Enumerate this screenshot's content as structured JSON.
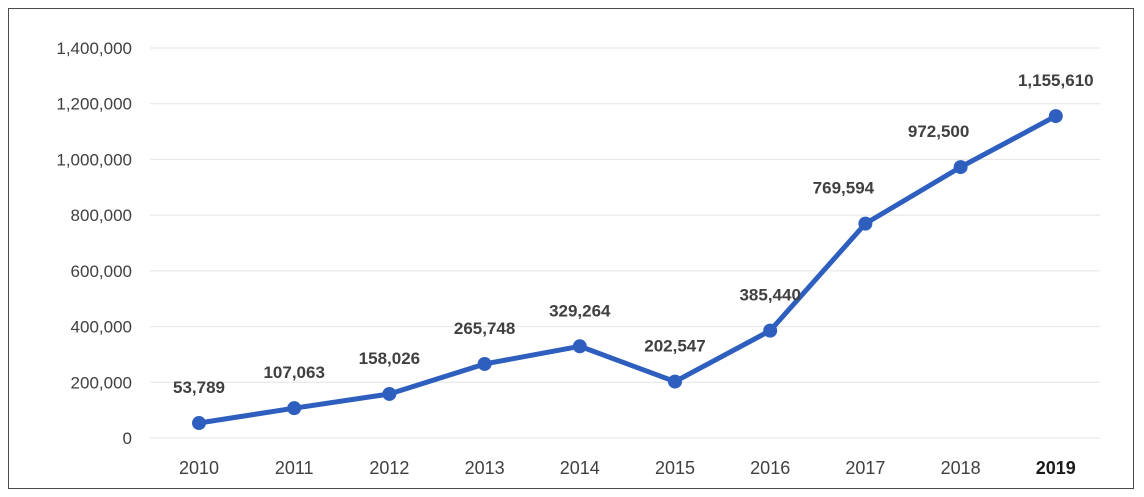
{
  "chart_data": {
    "type": "line",
    "categories": [
      "2010",
      "2011",
      "2012",
      "2013",
      "2014",
      "2015",
      "2016",
      "2017",
      "2018",
      "2019"
    ],
    "series": [
      {
        "values": [
          53789,
          107063,
          158026,
          265748,
          329264,
          202547,
          385440,
          769594,
          972500,
          1155610
        ]
      }
    ],
    "data_labels": [
      "53,789",
      "107,063",
      "158,026",
      "265,748",
      "329,264",
      "202,547",
      "385,440",
      "769,594",
      "972,500",
      "1,155,610"
    ],
    "y_tick_labels": [
      "0",
      "200,000",
      "400,000",
      "600,000",
      "800,000",
      "1,000,000",
      "1,200,000",
      "1,400,000"
    ],
    "y_tick_values": [
      0,
      200000,
      400000,
      600000,
      800000,
      1000000,
      1200000,
      1400000
    ],
    "ylim": [
      0,
      1400000
    ],
    "grid": true,
    "legend": "none",
    "title": "",
    "xlabel": "",
    "ylabel": "",
    "highlighted_category": "2019",
    "colors": {
      "series": "#2e5fbf",
      "grid": "#e4e4e4",
      "text": "#404040"
    }
  }
}
